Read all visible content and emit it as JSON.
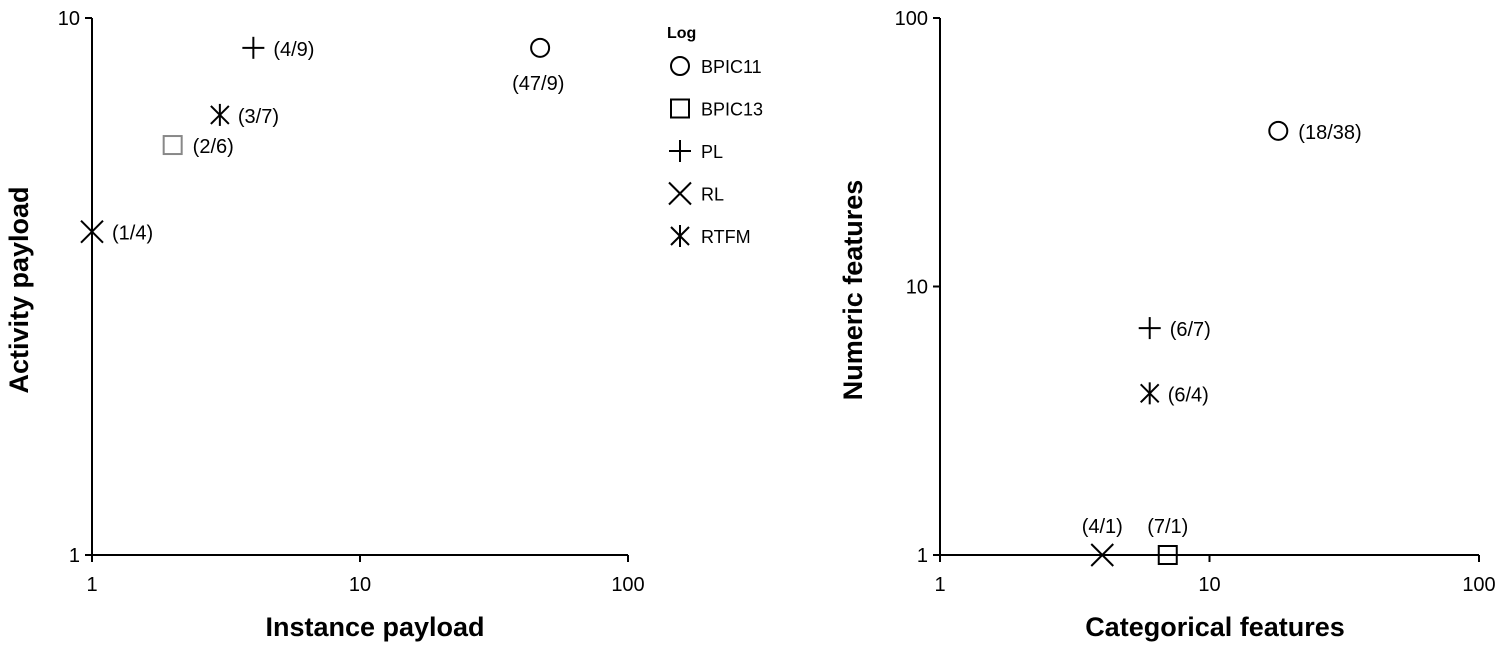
{
  "chart_data": [
    {
      "type": "scatter",
      "title": "",
      "xlabel": "Instance payload",
      "ylabel": "Activity payload",
      "x_scale": "log",
      "y_scale": "log",
      "xlim": [
        1,
        100
      ],
      "ylim": [
        1,
        10
      ],
      "x_ticks": [
        "1",
        "10",
        "100"
      ],
      "y_ticks": [
        "1",
        "10"
      ],
      "grid": false,
      "points": [
        {
          "series": "BPIC11",
          "x": 47,
          "y": 9,
          "label": "(47/9)",
          "color": "#000000"
        },
        {
          "series": "BPIC13",
          "x": 2,
          "y": 6,
          "label": "(2/6)",
          "color": "#888888"
        },
        {
          "series": "PL",
          "x": 4,
          "y": 9,
          "label": "(4/9)",
          "color": "#000000"
        },
        {
          "series": "RL",
          "x": 1,
          "y": 4,
          "label": "(1/4)",
          "color": "#000000"
        },
        {
          "series": "RTFM",
          "x": 3,
          "y": 7,
          "label": "(3/7)",
          "color": "#000000"
        }
      ]
    },
    {
      "type": "scatter",
      "title": "",
      "xlabel": "Categorical features",
      "ylabel": "Numeric features",
      "x_scale": "log",
      "y_scale": "log",
      "xlim": [
        1,
        100
      ],
      "ylim": [
        1,
        100
      ],
      "x_ticks": [
        "1",
        "10",
        "100"
      ],
      "y_ticks": [
        "1",
        "10",
        "100"
      ],
      "grid": false,
      "points": [
        {
          "series": "BPIC11",
          "x": 18,
          "y": 38,
          "label": "(18/38)",
          "color": "#000000"
        },
        {
          "series": "BPIC13",
          "x": 7,
          "y": 1,
          "label": "(7/1)",
          "color": "#000000"
        },
        {
          "series": "PL",
          "x": 6,
          "y": 7,
          "label": "(6/7)",
          "color": "#000000"
        },
        {
          "series": "RL",
          "x": 4,
          "y": 1,
          "label": "(4/1)",
          "color": "#000000"
        },
        {
          "series": "RTFM",
          "x": 6,
          "y": 4,
          "label": "(6/4)",
          "color": "#000000"
        }
      ]
    }
  ],
  "legend": {
    "title": "Log",
    "placement": "between charts, top",
    "items": [
      {
        "name": "BPIC11",
        "marker": "circle"
      },
      {
        "name": "BPIC13",
        "marker": "square"
      },
      {
        "name": "PL",
        "marker": "plus"
      },
      {
        "name": "RL",
        "marker": "x"
      },
      {
        "name": "RTFM",
        "marker": "asterisk"
      }
    ]
  }
}
